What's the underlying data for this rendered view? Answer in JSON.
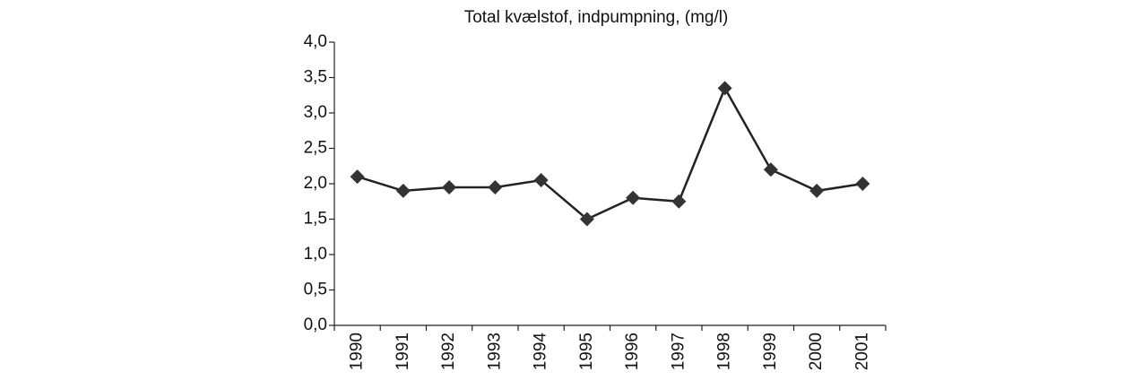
{
  "chart_data": {
    "type": "line",
    "title": "Total kvælstof, indpumpning, (mg/l)",
    "categories": [
      "1990",
      "1991",
      "1992",
      "1993",
      "1994",
      "1995",
      "1996",
      "1997",
      "1998",
      "1999",
      "2000",
      "2001"
    ],
    "values": [
      2.1,
      1.9,
      1.95,
      1.95,
      2.05,
      1.5,
      1.8,
      1.75,
      3.35,
      2.2,
      1.9,
      2.0
    ],
    "color": "#222222",
    "marker_color": "#333333",
    "ylim": [
      0,
      4
    ],
    "yticks": [
      {
        "value": 0,
        "label": "0,0"
      },
      {
        "value": 0.5,
        "label": "0,5"
      },
      {
        "value": 1,
        "label": "1,0"
      },
      {
        "value": 1.5,
        "label": "1,5"
      },
      {
        "value": 2,
        "label": "2,0"
      },
      {
        "value": 2.5,
        "label": "2,5"
      },
      {
        "value": 3,
        "label": "3,0"
      },
      {
        "value": 3.5,
        "label": "3,5"
      },
      {
        "value": 4,
        "label": "4,0"
      }
    ],
    "grid": false
  }
}
